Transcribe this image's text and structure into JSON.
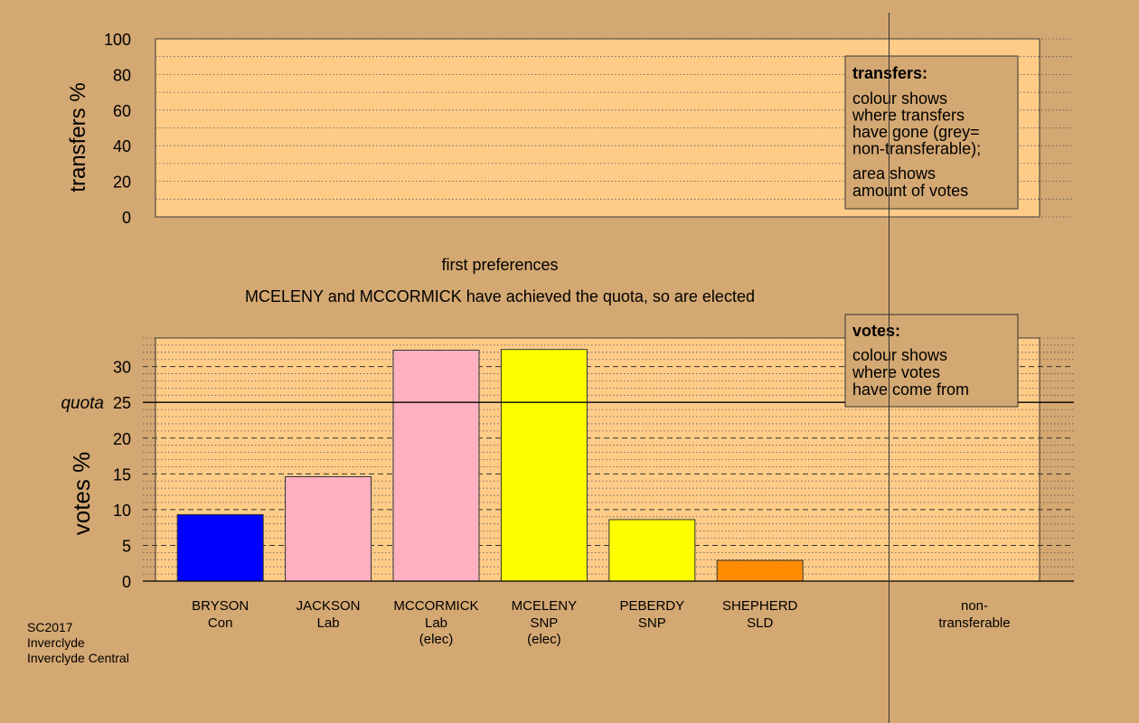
{
  "colors": {
    "background": "#d4a872",
    "plot_fill": "#ffcc88",
    "legend_fill": "#d4a872"
  },
  "chart_data": [
    {
      "type": "bar",
      "ylabel": "transfers %",
      "ylim": [
        0,
        100
      ],
      "yticks": [
        0,
        20,
        40,
        60,
        80,
        100
      ],
      "legend": {
        "position": "top-right",
        "title": "transfers:",
        "lines_a": [
          "colour shows",
          "where transfers",
          "have gone (grey=",
          "non-transferable);"
        ],
        "lines_b": [
          "area shows",
          "amount of votes"
        ]
      },
      "series": []
    },
    {
      "type": "bar",
      "title": "first preferences",
      "subtitle": "MCELENY and MCCORMICK have achieved the quota, so are elected",
      "ylabel": "votes %",
      "ylim": [
        0,
        34
      ],
      "yticks": [
        0,
        5,
        10,
        15,
        20,
        25,
        30
      ],
      "quota": {
        "label": "quota",
        "value": 25
      },
      "legend": {
        "position": "top-right",
        "title": "votes:",
        "lines": [
          "colour shows",
          "where votes",
          "have come from"
        ]
      },
      "categories": [
        {
          "name": "BRYSON",
          "party": "Con",
          "note": "",
          "value": 9.3,
          "color": "#0000ff"
        },
        {
          "name": "JACKSON",
          "party": "Lab",
          "note": "",
          "value": 14.6,
          "color": "#ffb0c0"
        },
        {
          "name": "MCCORMICK",
          "party": "Lab",
          "note": "(elec)",
          "value": 32.3,
          "color": "#ffb0c0"
        },
        {
          "name": "MCELENY",
          "party": "SNP",
          "note": "(elec)",
          "value": 32.4,
          "color": "#ffff00"
        },
        {
          "name": "PEBERDY",
          "party": "SNP",
          "note": "",
          "value": 8.6,
          "color": "#ffff00"
        },
        {
          "name": "SHEPHERD",
          "party": "SLD",
          "note": "",
          "value": 2.9,
          "color": "#ff8c00"
        }
      ],
      "nontransferable": {
        "line1": "non-",
        "line2": "transferable"
      }
    }
  ],
  "footer": [
    "SC2017",
    "Inverclyde",
    "Inverclyde Central"
  ]
}
